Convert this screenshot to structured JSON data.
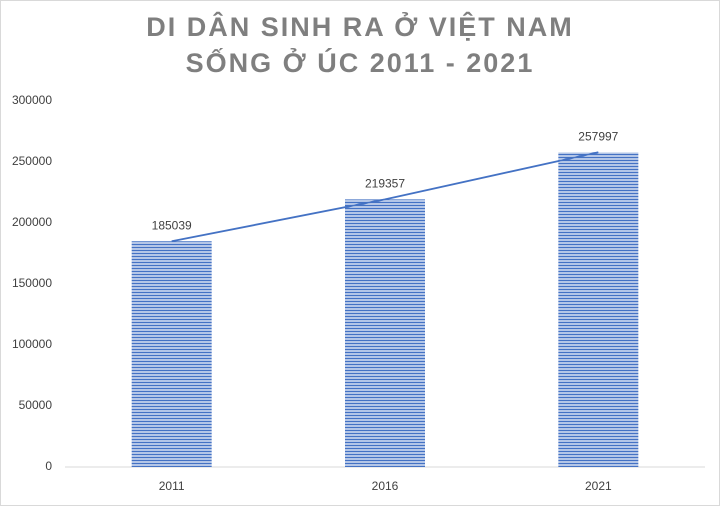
{
  "chart_data": {
    "type": "bar",
    "title": [
      "DI DÂN SINH RA Ở VIỆT NAM",
      "SỐNG Ở ÚC 2011 - 2021"
    ],
    "categories": [
      "2011",
      "2016",
      "2021"
    ],
    "values": [
      185039,
      219357,
      257997
    ],
    "color": "#4472c4",
    "pattern": "horizontal-stripes",
    "overlay_line": true,
    "line_color": "#4472c4",
    "ylim": [
      0,
      300000
    ],
    "yticks": [
      0,
      50000,
      100000,
      150000,
      200000,
      250000,
      300000
    ],
    "grid": false
  }
}
